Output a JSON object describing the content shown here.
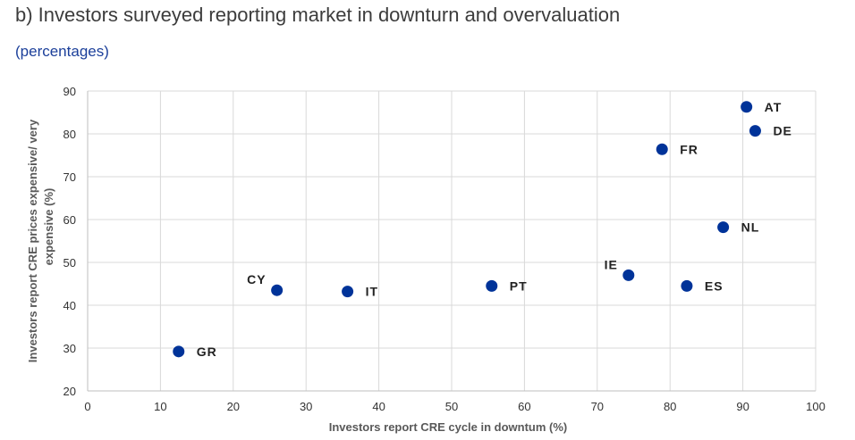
{
  "title": "b) Investors surveyed reporting market in downturn and overvaluation",
  "subtitle": "(percentages)",
  "chart_data": {
    "type": "scatter",
    "xlabel": "Investors report CRE cycle in downtum (%)",
    "ylabel_lines": [
      "Investors report CRE prices expensive/ very",
      "expensive (%)"
    ],
    "xlim": [
      0,
      100
    ],
    "ylim": [
      20,
      90
    ],
    "xticks": [
      0,
      10,
      20,
      30,
      40,
      50,
      60,
      70,
      80,
      90,
      100
    ],
    "yticks": [
      20,
      30,
      40,
      50,
      60,
      70,
      80,
      90
    ],
    "grid": true,
    "marker_color": "#003399",
    "points": [
      {
        "label": "GR",
        "x": 12.5,
        "y": 29.2,
        "pos": "right"
      },
      {
        "label": "CY",
        "x": 26.0,
        "y": 43.5,
        "pos": "upper-left"
      },
      {
        "label": "IT",
        "x": 35.7,
        "y": 43.2,
        "pos": "right"
      },
      {
        "label": "PT",
        "x": 55.5,
        "y": 44.5,
        "pos": "right"
      },
      {
        "label": "IE",
        "x": 74.3,
        "y": 47.0,
        "pos": "upper-left"
      },
      {
        "label": "ES",
        "x": 82.3,
        "y": 44.5,
        "pos": "right"
      },
      {
        "label": "FR",
        "x": 78.9,
        "y": 76.4,
        "pos": "right"
      },
      {
        "label": "NL",
        "x": 87.3,
        "y": 58.2,
        "pos": "right"
      },
      {
        "label": "AT",
        "x": 90.5,
        "y": 86.3,
        "pos": "right"
      },
      {
        "label": "DE",
        "x": 91.7,
        "y": 80.7,
        "pos": "right"
      }
    ]
  }
}
